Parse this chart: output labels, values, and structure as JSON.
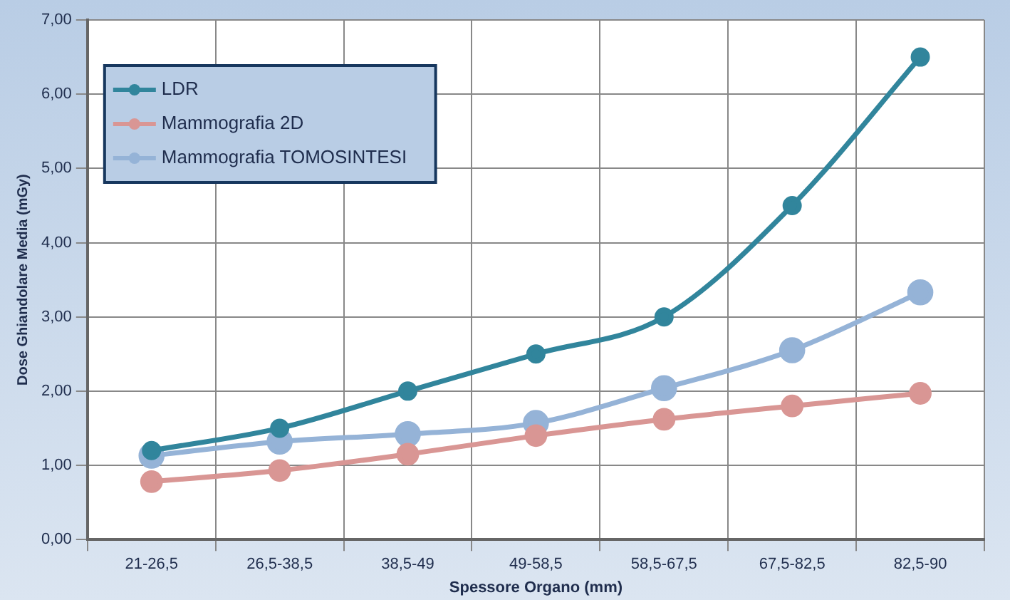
{
  "chart_data": {
    "type": "line",
    "xlabel": "Spessore Organo (mm)",
    "ylabel": "Dose Ghiandolare Media (mGy)",
    "categories": [
      "21-26,5",
      "26,5-38,5",
      "38,5-49",
      "49-58,5",
      "58,5-67,5",
      "67,5-82,5",
      "82,5-90"
    ],
    "series": [
      {
        "name": "LDR",
        "color": "#31859c",
        "values": [
          1.2,
          1.5,
          2.0,
          2.5,
          3.0,
          4.5,
          6.5
        ]
      },
      {
        "name": "Mammografia 2D",
        "color": "#d99694",
        "values": [
          0.78,
          0.93,
          1.15,
          1.4,
          1.62,
          1.8,
          1.97
        ]
      },
      {
        "name": "Mammografia TOMOSINTESI",
        "color": "#95b3d7",
        "values": [
          1.13,
          1.32,
          1.42,
          1.57,
          2.04,
          2.55,
          3.33
        ]
      }
    ],
    "ylim": [
      0,
      7
    ],
    "yticks": [
      {
        "value": 0,
        "label": "0,00"
      },
      {
        "value": 1,
        "label": "1,00"
      },
      {
        "value": 2,
        "label": "2,00"
      },
      {
        "value": 3,
        "label": "3,00"
      },
      {
        "value": 4,
        "label": "4,00"
      },
      {
        "value": 5,
        "label": "5,00"
      },
      {
        "value": 6,
        "label": "6,00"
      },
      {
        "value": 7,
        "label": "7,00"
      }
    ],
    "grid": true,
    "legend": "top left",
    "marker": "circle",
    "line_style": "solid"
  }
}
